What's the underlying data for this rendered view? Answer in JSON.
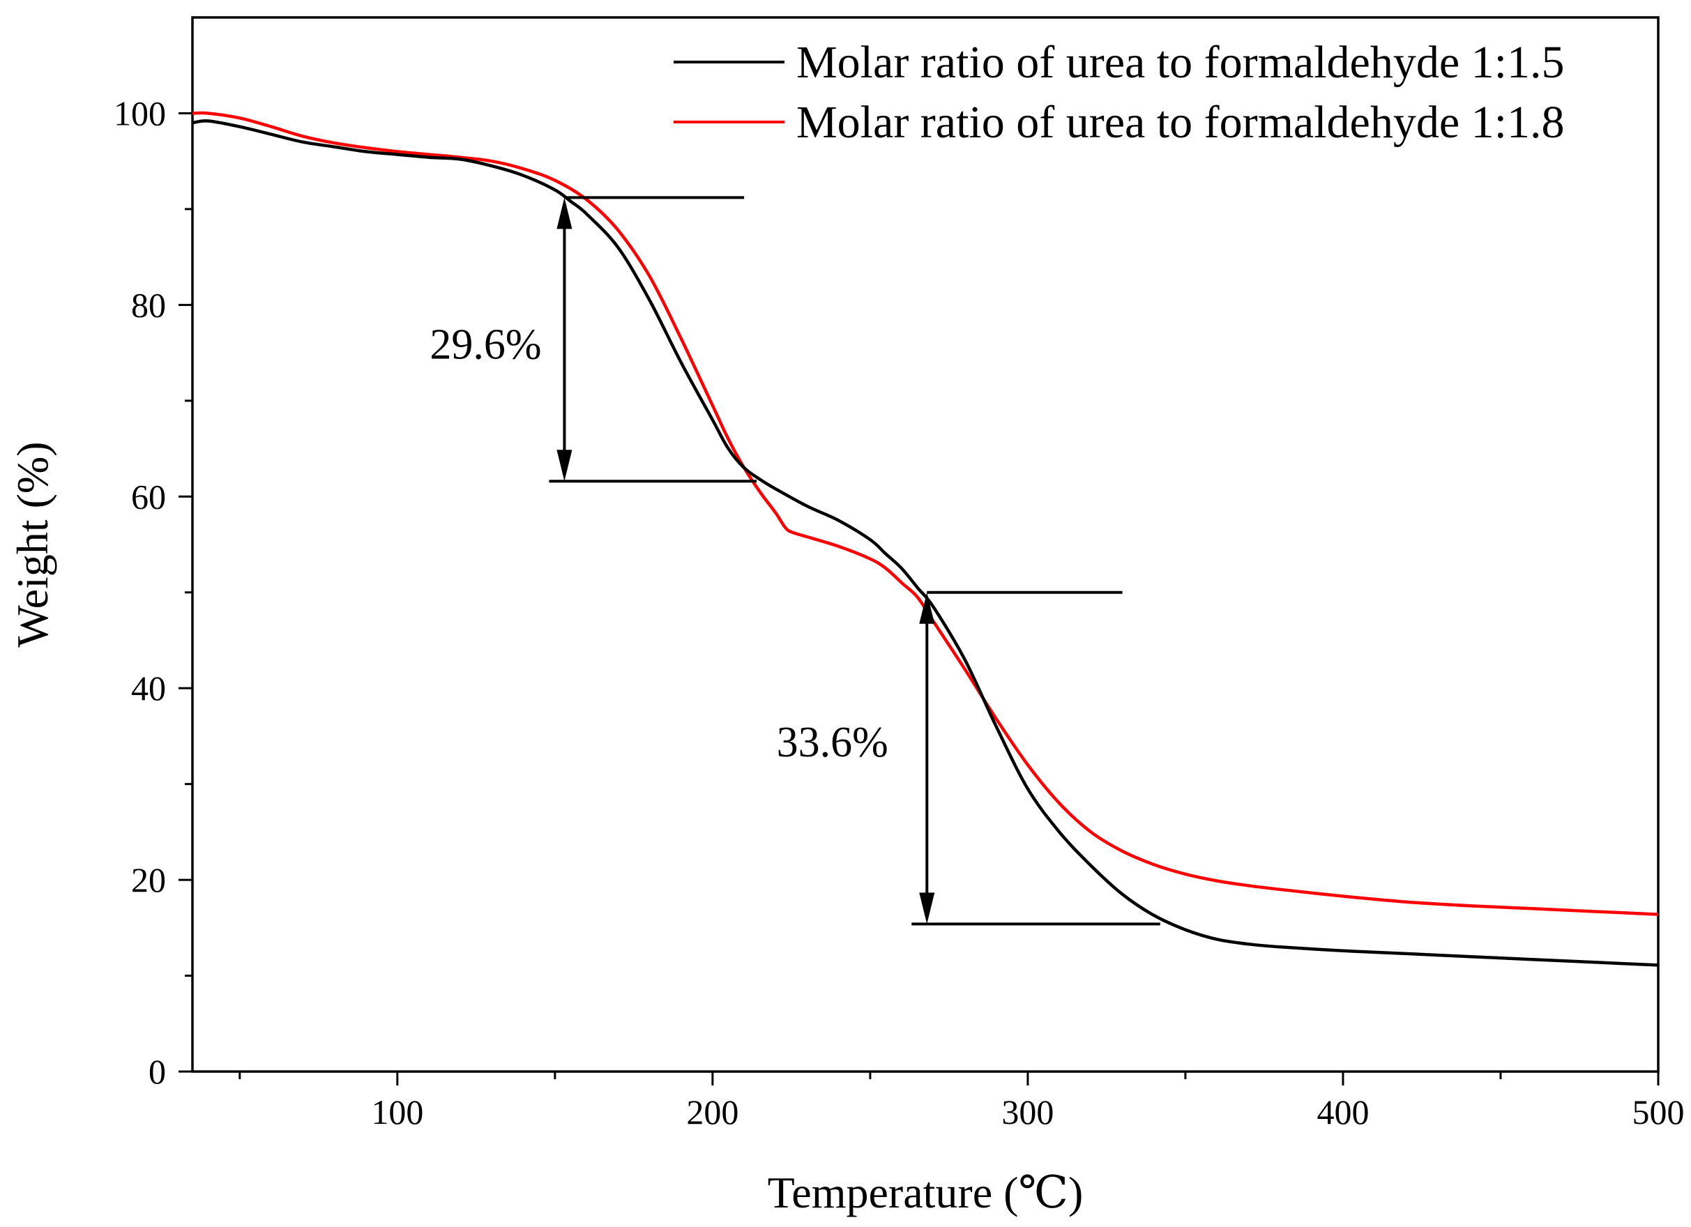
{
  "chart_data": {
    "type": "line",
    "title": "",
    "xlabel": "Temperature (℃)",
    "ylabel": "Weight (%)",
    "xlim": [
      35,
      500
    ],
    "ylim": [
      0,
      110
    ],
    "x_ticks": [
      100,
      200,
      300,
      400,
      500
    ],
    "y_ticks": [
      0,
      20,
      40,
      60,
      80,
      100
    ],
    "x_tick_labels": [
      "100",
      "200",
      "300",
      "400",
      "500"
    ],
    "y_tick_labels": [
      "0",
      "20",
      "40",
      "60",
      "80",
      "100"
    ],
    "legend_position": "top-right",
    "series": [
      {
        "name": "Molar ratio of urea to formaldehyde 1:1.5",
        "color": "#000000",
        "x": [
          35,
          40,
          50,
          60,
          70,
          80,
          90,
          100,
          110,
          120,
          130,
          140,
          150,
          155,
          160,
          170,
          180,
          190,
          200,
          205,
          210,
          215,
          220,
          230,
          240,
          250,
          255,
          260,
          265,
          270,
          280,
          290,
          300,
          310,
          320,
          330,
          340,
          350,
          360,
          370,
          380,
          400,
          420,
          440,
          460,
          480,
          500
        ],
        "y": [
          99,
          99.2,
          98.6,
          97.8,
          97,
          96.5,
          96,
          95.7,
          95.4,
          95.2,
          94.5,
          93.5,
          92,
          90.8,
          89.5,
          86,
          80.5,
          74,
          68,
          65,
          63,
          61.8,
          60.8,
          59,
          57.5,
          55.5,
          54,
          52.5,
          50.5,
          48.5,
          43,
          36,
          29.5,
          25,
          21.5,
          18.5,
          16.3,
          14.8,
          13.8,
          13.3,
          13,
          12.6,
          12.3,
          12,
          11.7,
          11.4,
          11.1
        ]
      },
      {
        "name": "Molar ratio of urea to formaldehyde 1:1.8",
        "color": "#ff0000",
        "x": [
          35,
          40,
          50,
          60,
          70,
          80,
          90,
          100,
          110,
          120,
          130,
          140,
          150,
          160,
          170,
          180,
          190,
          200,
          205,
          210,
          215,
          220,
          223,
          225,
          230,
          240,
          250,
          255,
          260,
          265,
          270,
          280,
          290,
          300,
          310,
          320,
          330,
          340,
          350,
          360,
          370,
          380,
          400,
          420,
          440,
          460,
          480,
          500
        ],
        "y": [
          100,
          100,
          99.5,
          98.6,
          97.6,
          96.9,
          96.4,
          96,
          95.7,
          95.4,
          95,
          94.2,
          93,
          91,
          87.8,
          83,
          76.5,
          69.5,
          66,
          63,
          60.5,
          58.3,
          56.8,
          56.3,
          55.8,
          54.8,
          53.5,
          52.5,
          51,
          49.5,
          47,
          42,
          36.8,
          32,
          28,
          25,
          23,
          21.6,
          20.6,
          19.9,
          19.4,
          19,
          18.3,
          17.7,
          17.3,
          17,
          16.7,
          16.4
        ]
      }
    ],
    "annotations": [
      {
        "label": "29.6%",
        "x_from": 153,
        "x_to": 210,
        "y_top": 91.2,
        "y_bottom": 61.6,
        "x_text": 128,
        "y_text": 76
      },
      {
        "label": "33.6%",
        "x_from": 268,
        "x_to": 342,
        "y_top": 50,
        "y_bottom": 15.4,
        "x_text": 238,
        "y_text": 34.5
      }
    ]
  }
}
